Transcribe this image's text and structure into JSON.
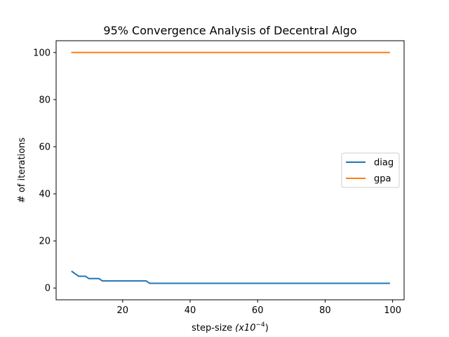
{
  "chart_data": {
    "type": "line",
    "title": "95% Convergence Analysis of Decentral Algo",
    "xlabel": "step-size",
    "xlabel_unit": "(x10",
    "xlabel_exp": "−4",
    "xlabel_close": ")",
    "ylabel": "# of iterations",
    "xlim": [
      0.3,
      103.4
    ],
    "ylim": [
      -5,
      105
    ],
    "xticks": [
      20,
      40,
      60,
      80,
      100
    ],
    "yticks": [
      0,
      20,
      40,
      60,
      80,
      100
    ],
    "grid": false,
    "legend_position": "center-right",
    "series": [
      {
        "name": "diag",
        "color": "#1f77b4",
        "x": [
          5,
          7,
          9,
          10,
          13,
          14,
          27,
          28,
          99
        ],
        "y": [
          7,
          5,
          5,
          4,
          4,
          3,
          3,
          2,
          2
        ]
      },
      {
        "name": "gpa",
        "color": "#ff7f0e",
        "x": [
          5,
          99
        ],
        "y": [
          100,
          100
        ]
      }
    ]
  }
}
